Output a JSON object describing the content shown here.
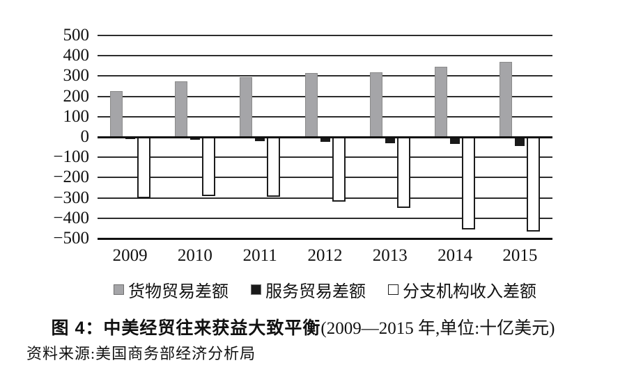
{
  "figure": {
    "title_main": "图 4：中美经贸往来获益大致平衡",
    "title_sub": "(2009—2015 年,单位:十亿美元)",
    "source": "资料来源:美国商务部经济分析局"
  },
  "chart_data": {
    "type": "bar",
    "title": "图4：中美经贸往来获益大致平衡",
    "subtitle": "2009—2015年",
    "unit": "十亿美元",
    "categories": [
      "2009",
      "2010",
      "2011",
      "2012",
      "2013",
      "2014",
      "2015"
    ],
    "series": [
      {
        "key": "goods-trade-balance",
        "name": "货物贸易差额",
        "fill": "#a5a5a8",
        "border": "#8a8a8a",
        "values": [
          225,
          275,
          295,
          315,
          320,
          345,
          370
        ]
      },
      {
        "key": "services-trade-balance",
        "name": "服务贸易差额",
        "fill": "#1a1a1a",
        "border": "#1a1a1a",
        "values": [
          -10,
          -15,
          -20,
          -25,
          -30,
          -35,
          -45
        ]
      },
      {
        "key": "branch-income-balance",
        "name": "分支机构收入差额",
        "fill": "#ffffff",
        "border": "#1c1c1c",
        "values": [
          -300,
          -290,
          -295,
          -320,
          -350,
          -455,
          -465
        ]
      }
    ],
    "ylim": [
      -500,
      500
    ],
    "y_ticks": [
      500,
      400,
      300,
      200,
      100,
      0,
      -100,
      -200,
      -300,
      -400,
      -500
    ],
    "xlabel": "",
    "ylabel": "",
    "grid": true,
    "legend_position": "bottom"
  }
}
